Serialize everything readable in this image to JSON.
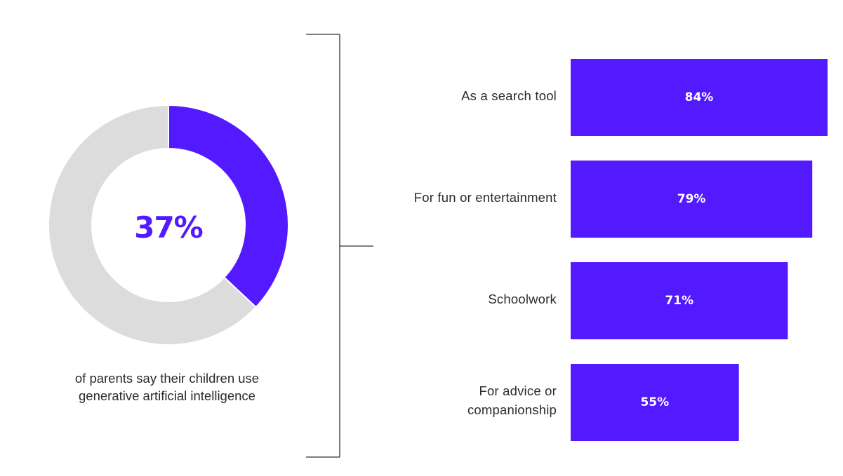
{
  "chart_data": [
    {
      "type": "pie",
      "values": [
        37,
        63
      ],
      "highlight_label": "37%",
      "caption_lines": [
        "of parents say their children use",
        "generative artificial intelligence"
      ],
      "colors": [
        "#5319FF",
        "#DCDCDC"
      ]
    },
    {
      "type": "bar",
      "orientation": "horizontal",
      "categories": [
        [
          "As a search tool"
        ],
        [
          "For fun or entertainment"
        ],
        [
          "Schoolwork"
        ],
        [
          "For advice or",
          "companionship"
        ]
      ],
      "values": [
        84,
        79,
        71,
        55
      ],
      "data_labels": [
        "84%",
        "79%",
        "71%",
        "55%"
      ],
      "xlim": [
        0,
        84
      ],
      "color": "#5319FF"
    }
  ],
  "colors": {
    "accent": "#5319FF",
    "track": "#DCDCDC",
    "text": "#2B2B2B",
    "bracket": "#333333"
  }
}
